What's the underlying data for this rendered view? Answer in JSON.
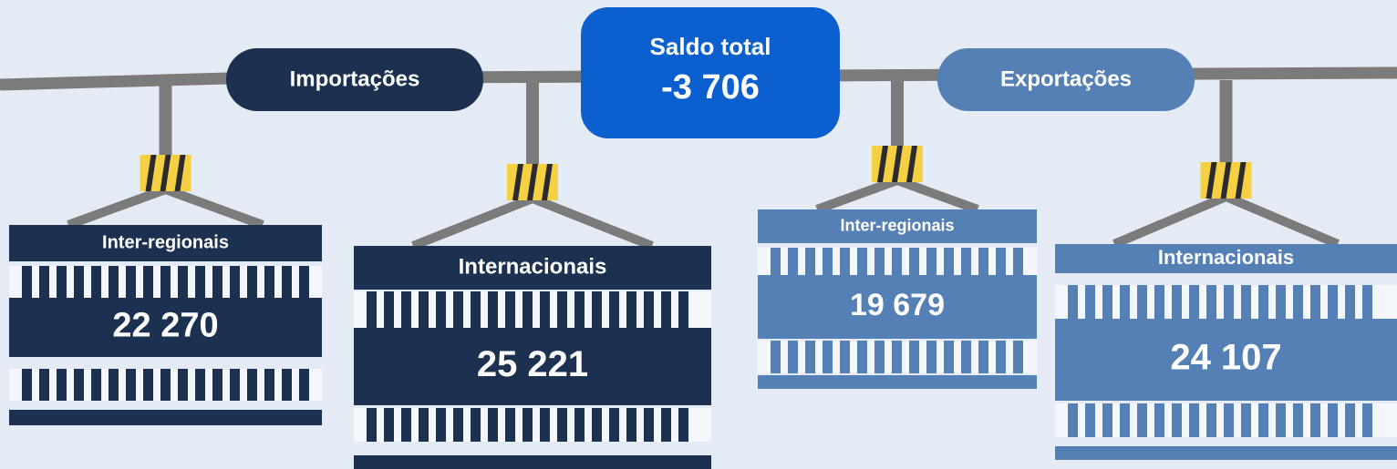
{
  "balance": {
    "label": "Saldo total",
    "value": "-3 706"
  },
  "groups": [
    {
      "label": "Importações",
      "items": [
        {
          "label": "Inter-regionais",
          "value": "22 270"
        },
        {
          "label": "Internacionais",
          "value": "25 221"
        }
      ]
    },
    {
      "label": "Exportações",
      "items": [
        {
          "label": "Inter-regionais",
          "value": "19 679"
        },
        {
          "label": "Internacionais",
          "value": "24 107"
        }
      ]
    }
  ]
}
